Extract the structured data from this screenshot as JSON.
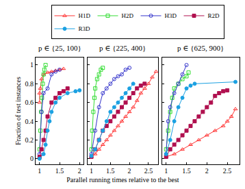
{
  "chart_data": [
    {
      "type": "line",
      "title": "p ∈ {25, 100}",
      "ylabel": "Fraction of test instances",
      "legend": "top",
      "grid": false,
      "xlim": [
        0.9,
        2.1
      ],
      "xticks": [
        1,
        1.5,
        2
      ],
      "ylim": [
        -0.06,
        1.08
      ],
      "yticks": [
        0,
        0.2,
        0.4,
        0.6,
        0.8,
        1
      ],
      "series": [
        {
          "name": "H1D",
          "color": "#ff3333",
          "marker": "triangle-up-open",
          "x": [
            1,
            1,
            1.02,
            1.05,
            1.1,
            1.2,
            1.3,
            1.4,
            1.5,
            1.6
          ],
          "values": [
            0.6,
            0.7,
            0.75,
            0.85,
            0.9,
            0.92,
            0.93,
            0.94,
            0.95,
            0.96
          ]
        },
        {
          "name": "H2D",
          "color": "#33dd33",
          "marker": "square-open",
          "x": [
            1,
            1.02,
            1.04,
            1.06,
            1.08,
            1.1,
            1.12,
            1.15
          ],
          "values": [
            0.1,
            0.3,
            0.5,
            0.65,
            0.8,
            0.9,
            0.95,
            1
          ]
        },
        {
          "name": "H3D",
          "color": "#3333cc",
          "marker": "circle-open",
          "x": [
            1,
            1.05,
            1.1,
            1.2,
            1.3,
            1.4,
            1.5
          ],
          "values": [
            0.05,
            0.5,
            0.7,
            0.75,
            0.9,
            0.93,
            0.95
          ]
        },
        {
          "name": "R2D",
          "color": "#b0104f",
          "marker": "square",
          "x": [
            1,
            1.05,
            1.1,
            1.15,
            1.2,
            1.3,
            1.4,
            1.5,
            1.6,
            1.7
          ],
          "values": [
            0.02,
            0.1,
            0.2,
            0.3,
            0.45,
            0.6,
            0.65,
            0.7,
            0.72,
            0.75
          ]
        },
        {
          "name": "R3D",
          "color": "#1ba1e2",
          "marker": "circle",
          "x": [
            1,
            1.1,
            1.15,
            1.2,
            1.25,
            1.3,
            1.4,
            1.5,
            1.7,
            1.9,
            2.0
          ],
          "values": [
            0,
            0.05,
            0.15,
            0.3,
            0.4,
            0.5,
            0.6,
            0.65,
            0.7,
            0.72,
            0.73
          ]
        }
      ]
    },
    {
      "type": "line",
      "title": "p ∈ {225, 400}",
      "xlabel": "Parallel running times relative to the best",
      "grid": false,
      "tick_labels": "x",
      "xlim": [
        0.9,
        2.75
      ],
      "xticks": [
        1,
        1.5,
        2,
        2.5
      ],
      "ylim": [
        -0.06,
        1.08
      ],
      "yticks": [
        0,
        0.2,
        0.4,
        0.6,
        0.8,
        1
      ],
      "series": [
        {
          "name": "H1D",
          "color": "#ff3333",
          "marker": "triangle-up-open",
          "x": [
            1,
            1.1,
            1.2,
            1.3,
            1.4,
            1.5,
            1.6,
            1.7,
            1.8,
            1.9,
            2.0,
            2.1,
            2.2,
            2.3,
            2.4,
            2.5,
            2.6,
            2.7
          ],
          "values": [
            0.02,
            0.05,
            0.1,
            0.15,
            0.2,
            0.25,
            0.3,
            0.35,
            0.4,
            0.45,
            0.5,
            0.55,
            0.62,
            0.7,
            0.75,
            0.8,
            0.87,
            0.93
          ]
        },
        {
          "name": "H2D",
          "color": "#33dd33",
          "marker": "square-open",
          "x": [
            1,
            1.02,
            1.05,
            1.08,
            1.1,
            1.15,
            1.2,
            1.25,
            1.3
          ],
          "values": [
            0.1,
            0.3,
            0.5,
            0.65,
            0.75,
            0.85,
            0.9,
            0.95,
            0.97
          ]
        },
        {
          "name": "H3D",
          "color": "#3333cc",
          "marker": "circle-open",
          "x": [
            1,
            1.1,
            1.2,
            1.3,
            1.4,
            1.5,
            1.6,
            1.7,
            1.8,
            1.9,
            2.0
          ],
          "values": [
            0.05,
            0.3,
            0.55,
            0.7,
            0.75,
            0.8,
            0.85,
            0.88,
            0.9,
            0.95,
            0.97
          ]
        },
        {
          "name": "R2D",
          "color": "#b0104f",
          "marker": "square",
          "x": [
            1,
            1.1,
            1.2,
            1.3,
            1.4,
            1.5,
            1.6,
            1.7,
            1.8,
            1.9,
            2.0,
            2.1,
            2.2,
            2.3,
            2.4
          ],
          "values": [
            0.02,
            0.1,
            0.2,
            0.3,
            0.35,
            0.4,
            0.45,
            0.5,
            0.55,
            0.6,
            0.65,
            0.7,
            0.75,
            0.78,
            0.8
          ]
        },
        {
          "name": "R3D",
          "color": "#1ba1e2",
          "marker": "circle",
          "x": [
            1,
            1.1,
            1.2,
            1.3,
            1.4,
            1.5,
            1.6,
            1.7,
            1.8,
            1.9,
            2.0,
            2.1
          ],
          "values": [
            0.03,
            0.1,
            0.2,
            0.3,
            0.4,
            0.5,
            0.55,
            0.6,
            0.65,
            0.7,
            0.75,
            0.8
          ]
        }
      ]
    },
    {
      "type": "line",
      "title": "p ∈ {625, 900}",
      "grid": false,
      "tick_labels": "x",
      "xlim": [
        0.9,
        2.8
      ],
      "xticks": [
        1,
        1.5,
        2,
        2.5
      ],
      "ylim": [
        -0.06,
        1.08
      ],
      "yticks": [
        0,
        0.2,
        0.4,
        0.6,
        0.8,
        1
      ],
      "series": [
        {
          "name": "H1D",
          "color": "#ff3333",
          "marker": "triangle-up-open",
          "x": [
            1,
            1.2,
            1.4,
            1.6,
            1.8,
            2.0,
            2.2,
            2.4,
            2.5,
            2.6,
            2.7
          ],
          "values": [
            0.02,
            0.05,
            0.1,
            0.15,
            0.2,
            0.25,
            0.3,
            0.35,
            0.4,
            0.45,
            0.53
          ]
        },
        {
          "name": "H2D",
          "color": "#33dd33",
          "marker": "square-open",
          "x": [
            1,
            1.05,
            1.1,
            1.15,
            1.2,
            1.3,
            1.4,
            1.5,
            1.55
          ],
          "values": [
            0.1,
            0.3,
            0.5,
            0.65,
            0.75,
            0.8,
            0.85,
            0.88,
            0.92
          ]
        },
        {
          "name": "H3D",
          "color": "#3333cc",
          "marker": "circle-open",
          "x": [
            1,
            1.05,
            1.1,
            1.2,
            1.3,
            1.4,
            1.5
          ],
          "values": [
            0.05,
            0.4,
            0.55,
            0.7,
            0.8,
            0.9,
            1
          ]
        },
        {
          "name": "R2D",
          "color": "#b0104f",
          "marker": "square",
          "x": [
            1,
            1.1,
            1.2,
            1.3,
            1.4,
            1.5,
            1.6,
            1.7,
            1.8,
            1.9,
            2.0,
            2.1,
            2.2,
            2.3,
            2.4,
            2.5
          ],
          "values": [
            0.02,
            0.1,
            0.15,
            0.2,
            0.25,
            0.3,
            0.35,
            0.4,
            0.45,
            0.5,
            0.55,
            0.6,
            0.67,
            0.7,
            0.72,
            0.73
          ]
        },
        {
          "name": "R3D",
          "color": "#1ba1e2",
          "marker": "circle",
          "x": [
            1,
            1.1,
            1.2,
            1.3,
            1.4,
            1.5,
            1.6,
            1.7,
            2.7
          ],
          "values": [
            0.05,
            0.2,
            0.4,
            0.55,
            0.65,
            0.75,
            0.78,
            0.8,
            0.82
          ]
        }
      ]
    }
  ]
}
